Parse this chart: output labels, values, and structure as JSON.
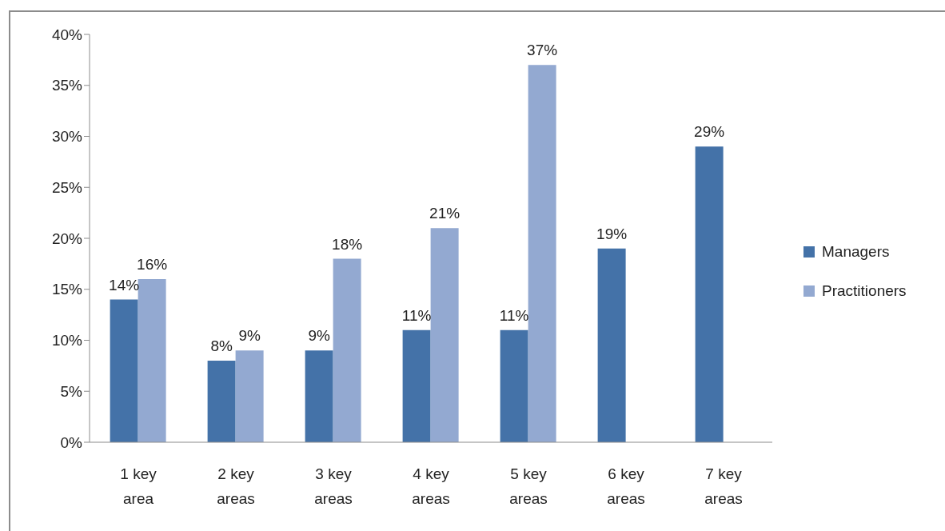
{
  "chart_data": {
    "type": "bar",
    "categories": [
      "1 key area",
      "2 key areas",
      "3 key areas",
      "4 key areas",
      "5 key areas",
      "6 key areas",
      "7 key areas"
    ],
    "series": [
      {
        "name": "Managers",
        "color": "#4472a8",
        "values": [
          14,
          8,
          9,
          11,
          11,
          19,
          29
        ],
        "value_labels": [
          "14%",
          "8%",
          "9%",
          "11%",
          "11%",
          "19%",
          "29%"
        ]
      },
      {
        "name": "Practitioners",
        "color": "#93a9d1",
        "values": [
          16,
          9,
          18,
          21,
          37,
          null,
          null
        ],
        "value_labels": [
          "16%",
          "9%",
          "18%",
          "21%",
          "37%",
          null,
          null
        ]
      }
    ],
    "ylim": [
      0,
      40
    ],
    "yticks": [
      {
        "value": 0,
        "label": "0%"
      },
      {
        "value": 5,
        "label": "5%"
      },
      {
        "value": 10,
        "label": "10%"
      },
      {
        "value": 15,
        "label": "15%"
      },
      {
        "value": 20,
        "label": "20%"
      },
      {
        "value": 25,
        "label": "25%"
      },
      {
        "value": 30,
        "label": "30%"
      },
      {
        "value": 35,
        "label": "35%"
      },
      {
        "value": 40,
        "label": "40%"
      }
    ],
    "legend": "right"
  }
}
